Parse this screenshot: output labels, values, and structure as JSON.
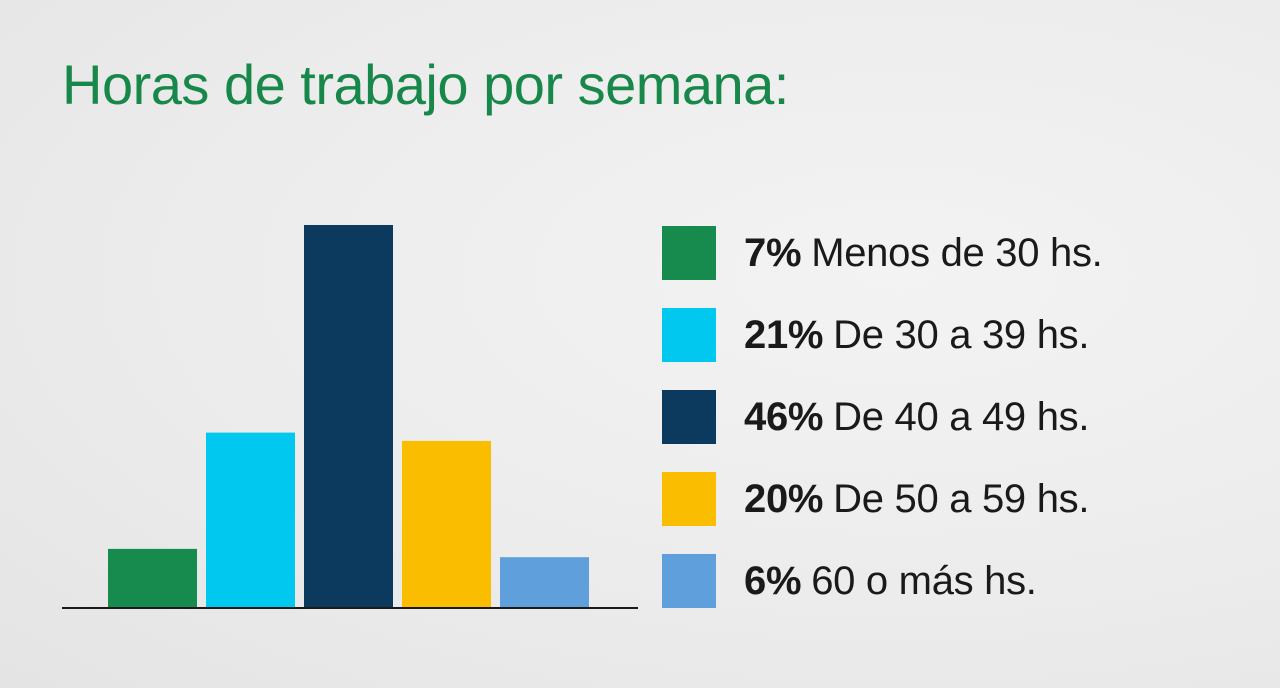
{
  "chart_data": {
    "type": "bar",
    "title": "Horas de trabajo por semana:",
    "categories": [
      "Menos de 30 hs.",
      "De 30 a 39 hs.",
      "De 40 a 49 hs.",
      "De 50 a 59 hs.",
      "60 o más hs."
    ],
    "values": [
      7,
      21,
      46,
      20,
      6
    ],
    "value_labels": [
      "7%",
      "21%",
      "46%",
      "20%",
      "6%"
    ],
    "colors": [
      "#178a4e",
      "#00c8ee",
      "#0b3a5e",
      "#fbbd00",
      "#5f9fdb"
    ],
    "unit": "%",
    "ylim": [
      0,
      46
    ],
    "grid": false,
    "legend_position": "right"
  }
}
